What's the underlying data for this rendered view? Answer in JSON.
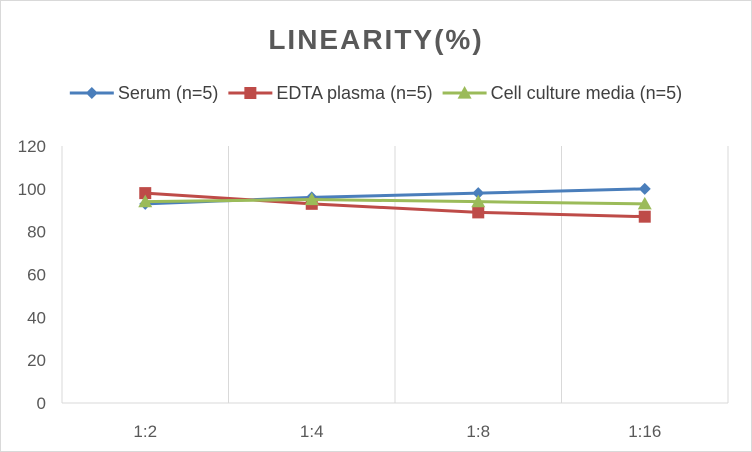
{
  "chart_data": {
    "type": "line",
    "title": "LINEARITY(%)",
    "xlabel": "",
    "ylabel": "",
    "categories": [
      "1:2",
      "1:4",
      "1:8",
      "1:16"
    ],
    "ylim": [
      0,
      120
    ],
    "yticks": [
      0,
      20,
      40,
      60,
      80,
      100,
      120
    ],
    "grid": "vertical",
    "legend_position": "top",
    "series": [
      {
        "name": "Serum (n=5)",
        "values": [
          93,
          96,
          98,
          100
        ],
        "color": "#4a7ebb",
        "marker": "diamond"
      },
      {
        "name": "EDTA plasma (n=5)",
        "values": [
          98,
          93,
          89,
          87
        ],
        "color": "#be4b48",
        "marker": "square"
      },
      {
        "name": "Cell culture media (n=5)",
        "values": [
          94,
          95,
          94,
          93
        ],
        "color": "#9bbb59",
        "marker": "triangle"
      }
    ]
  }
}
